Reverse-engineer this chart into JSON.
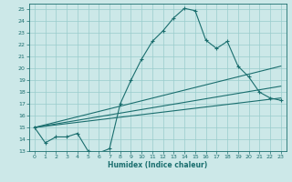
{
  "title": "",
  "xlabel": "Humidex (Indice chaleur)",
  "xlim": [
    -0.5,
    23.5
  ],
  "ylim": [
    13,
    25.5
  ],
  "yticks": [
    13,
    14,
    15,
    16,
    17,
    18,
    19,
    20,
    21,
    22,
    23,
    24,
    25
  ],
  "xticks": [
    0,
    1,
    2,
    3,
    4,
    5,
    6,
    7,
    8,
    9,
    10,
    11,
    12,
    13,
    14,
    15,
    16,
    17,
    18,
    19,
    20,
    21,
    22,
    23
  ],
  "bg_color": "#cce8e8",
  "grid_color": "#99cccc",
  "line_color": "#1a6e6e",
  "curve_x": [
    0,
    1,
    2,
    3,
    4,
    5,
    6,
    7,
    8,
    9,
    10,
    11,
    12,
    13,
    14,
    15,
    16,
    17,
    18,
    19,
    20,
    21,
    22,
    23
  ],
  "curve_y": [
    15.0,
    13.7,
    14.2,
    14.2,
    14.5,
    13.0,
    12.85,
    13.2,
    17.0,
    19.0,
    20.8,
    22.3,
    23.2,
    24.3,
    25.1,
    24.9,
    22.4,
    21.7,
    22.3,
    20.2,
    19.3,
    18.0,
    17.5,
    17.3
  ],
  "line2_x": [
    0,
    23
  ],
  "line2_y": [
    15.0,
    20.2
  ],
  "line3_x": [
    0,
    23
  ],
  "line3_y": [
    15.0,
    18.5
  ],
  "line4_x": [
    0,
    23
  ],
  "line4_y": [
    15.0,
    17.5
  ]
}
